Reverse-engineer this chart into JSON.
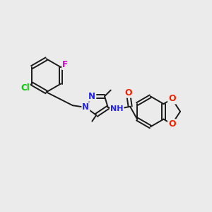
{
  "background_color": "#ebebeb",
  "bond_color": "#1a1a1a",
  "bond_width": 1.4,
  "atom_colors": {
    "Cl": "#00cc00",
    "F": "#cc00cc",
    "N": "#2222ee",
    "O": "#ee2200",
    "C": "#1a1a1a",
    "H": "#1a1a1a"
  },
  "figsize": [
    3.0,
    3.0
  ],
  "dpi": 100,
  "xlim": [
    -2.5,
    5.0
  ],
  "ylim": [
    -2.5,
    3.5
  ]
}
